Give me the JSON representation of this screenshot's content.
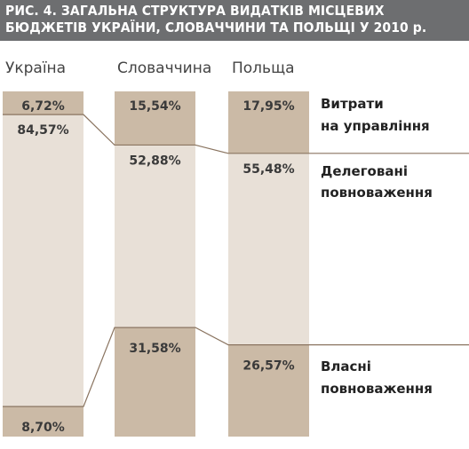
{
  "title_lines": [
    "РИС. 4. ЗАГАЛЬНА СТРУКТУРА ВИДАТКІВ МІСЦЕВИХ",
    "БЮДЖЕТІВ УКРАЇНИ, СЛОВАЧЧИНИ ТА ПОЛЬЩІ У 2010 р."
  ],
  "colors": {
    "title_bg": "#6d6e70",
    "dark_segment": "#cbbaa6",
    "light_segment": "#e8e0d7",
    "connector": "#8a7460"
  },
  "chart_data": {
    "type": "bar",
    "stacked": true,
    "orientation": "vertical",
    "title": "РИС. 4. ЗАГАЛЬНА СТРУКТУРА ВИДАТКІВ МІСЦЕВИХ БЮДЖЕТІВ УКРАЇНИ, СЛОВАЧЧИНИ ТА ПОЛЬЩІ У 2010 р.",
    "categories": [
      "Україна",
      "Словаччина",
      "Польща"
    ],
    "ylim": [
      0,
      100
    ],
    "series": [
      {
        "name": "Витрати на управління",
        "legend_lines": [
          "Витрати",
          "на управління"
        ],
        "values": [
          6.72,
          15.54,
          17.95
        ],
        "labels": [
          "6,72%",
          "15,54%",
          "17,95%"
        ]
      },
      {
        "name": "Делеговані повноваження",
        "legend_lines": [
          "Делеговані",
          "повноваження"
        ],
        "values": [
          84.57,
          52.88,
          55.48
        ],
        "labels": [
          "84,57%",
          "52,88%",
          "55,48%"
        ]
      },
      {
        "name": "Власні повноваження",
        "legend_lines": [
          "Власні",
          "повноваження"
        ],
        "values": [
          8.7,
          31.58,
          26.57
        ],
        "labels": [
          "8,70%",
          "31,58%",
          "26,57%"
        ]
      }
    ],
    "legend": "right"
  }
}
